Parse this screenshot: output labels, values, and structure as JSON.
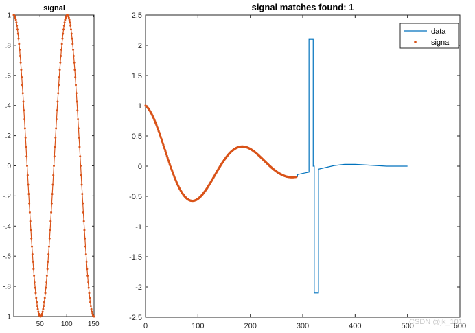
{
  "colors": {
    "data_line": "#0072BD",
    "signal_marker": "#D95319",
    "axis": "#262626"
  },
  "watermark": "CSDN @jk_101",
  "chart_data": [
    {
      "type": "scatter",
      "title": "signal",
      "xlabel": "",
      "ylabel": "",
      "xlim": [
        1,
        151
      ],
      "ylim": [
        -1,
        1
      ],
      "xticks": [
        50,
        100,
        150
      ],
      "yticks": [
        -1,
        -0.8,
        -0.6,
        -0.4,
        -0.2,
        0,
        0.2,
        0.4,
        0.6,
        0.8,
        1
      ],
      "series": [
        {
          "type": "line+marker",
          "function": "cos(2*pi*(x-1)/100)",
          "x_range": [
            1,
            151
          ],
          "sample_every": 1
        }
      ],
      "grid": false
    },
    {
      "type": "line",
      "title": "signal matches found: 1",
      "xlabel": "",
      "ylabel": "",
      "xlim": [
        0,
        600
      ],
      "ylim": [
        -2.5,
        2.5
      ],
      "xticks": [
        0,
        100,
        200,
        300,
        400,
        500,
        600
      ],
      "yticks": [
        -2.5,
        -2,
        -1.5,
        -1,
        -0.5,
        0,
        0.5,
        1,
        1.5,
        2,
        2.5
      ],
      "legend": {
        "position": "top-right",
        "entries": [
          "data",
          "signal"
        ]
      },
      "series": [
        {
          "name": "data",
          "type": "line",
          "segments": [
            {
              "kind": "damped",
              "x_range": [
                0,
                290
              ],
              "amplitude": 1,
              "decay": 0.006,
              "period": 190
            },
            {
              "kind": "points",
              "x": [
                290,
                300,
                312,
                312,
                320,
                320,
                322,
                322,
                330,
                330,
                340
              ],
              "y": [
                -0.14,
                -0.12,
                -0.1,
                2.1,
                2.1,
                0,
                0,
                -2.1,
                -2.1,
                -0.05,
                -0.03
              ]
            },
            {
              "kind": "tail",
              "x": [
                340,
                360,
                380,
                400,
                420,
                440,
                460,
                480,
                500
              ],
              "y": [
                -0.03,
                0.01,
                0.03,
                0.03,
                0.02,
                0.01,
                0.0,
                0.0,
                0.0
              ]
            }
          ]
        },
        {
          "name": "signal",
          "type": "marker",
          "segments": [
            {
              "kind": "damped",
              "x_range": [
                0,
                288
              ],
              "amplitude": 1,
              "decay": 0.006,
              "period": 190
            }
          ]
        }
      ],
      "grid": false
    }
  ]
}
